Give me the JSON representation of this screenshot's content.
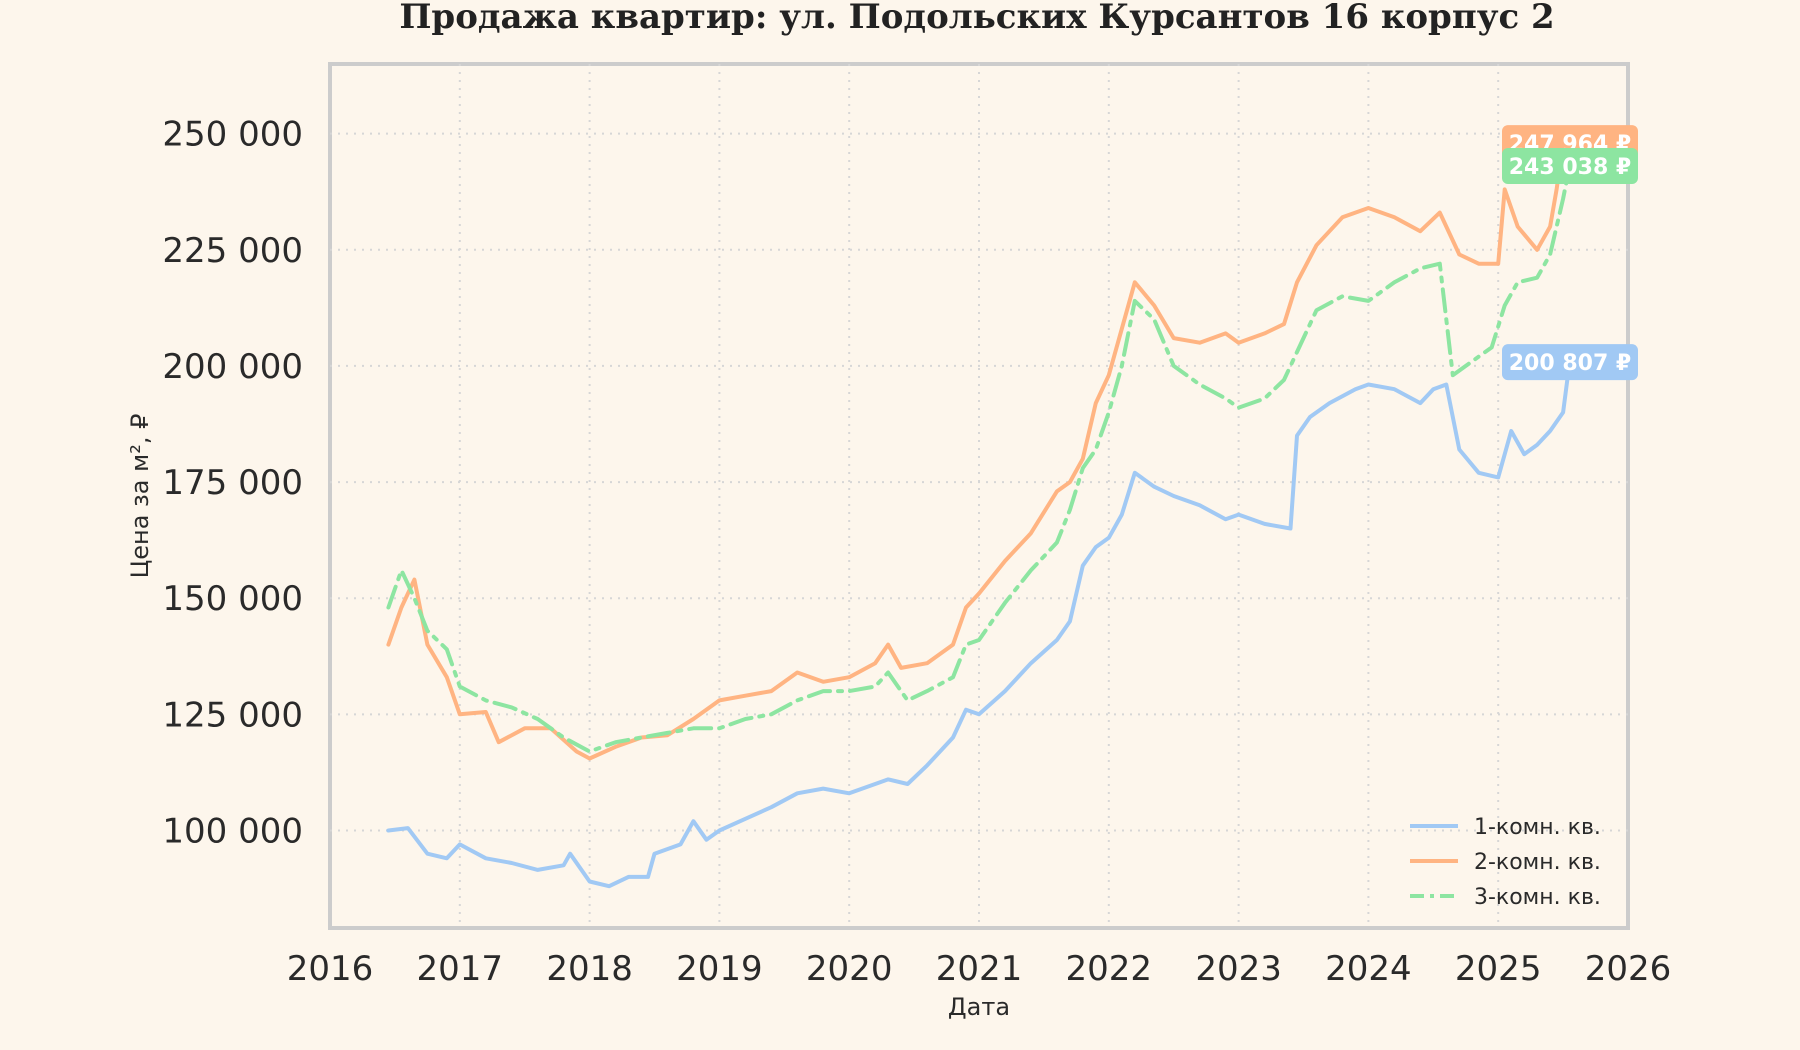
{
  "chart_data": {
    "type": "line",
    "title": "Продажа квартир: ул. Подольских Курсантов 16 корпус 2",
    "xlabel": "Дата",
    "ylabel": "Цена за м², ₽",
    "xlim": [
      2016,
      2026
    ],
    "ylim": [
      79000,
      265000
    ],
    "x_ticks": [
      "2016",
      "2017",
      "2018",
      "2019",
      "2020",
      "2021",
      "2022",
      "2023",
      "2024",
      "2025",
      "2026"
    ],
    "y_ticks": [
      {
        "value": 100000,
        "label": "100 000"
      },
      {
        "value": 125000,
        "label": "125 000"
      },
      {
        "value": 150000,
        "label": "150 000"
      },
      {
        "value": 175000,
        "label": "175 000"
      },
      {
        "value": 200000,
        "label": "200 000"
      },
      {
        "value": 225000,
        "label": "225 000"
      },
      {
        "value": 250000,
        "label": "250 000"
      }
    ],
    "grid": true,
    "legend_position": "bottom-right",
    "series": [
      {
        "name": "1-комн. кв.",
        "color": "#a1c9f4",
        "dash": "solid",
        "last_label": "200 807 ₽",
        "x": [
          2016.45,
          2016.6,
          2016.75,
          2016.9,
          2017.0,
          2017.2,
          2017.4,
          2017.6,
          2017.8,
          2017.85,
          2018.0,
          2018.15,
          2018.3,
          2018.45,
          2018.5,
          2018.7,
          2018.8,
          2018.9,
          2019.0,
          2019.2,
          2019.4,
          2019.6,
          2019.8,
          2020.0,
          2020.2,
          2020.3,
          2020.45,
          2020.6,
          2020.8,
          2020.9,
          2021.0,
          2021.2,
          2021.4,
          2021.6,
          2021.7,
          2021.8,
          2021.9,
          2022.0,
          2022.1,
          2022.2,
          2022.35,
          2022.5,
          2022.7,
          2022.9,
          2023.0,
          2023.2,
          2023.4,
          2023.45,
          2023.55,
          2023.7,
          2023.9,
          2024.0,
          2024.2,
          2024.4,
          2024.5,
          2024.6,
          2024.7,
          2024.85,
          2025.0,
          2025.1,
          2025.2,
          2025.3,
          2025.4,
          2025.5,
          2025.55
        ],
        "y": [
          100000,
          100500,
          95000,
          94000,
          97000,
          94000,
          93000,
          91500,
          92500,
          95000,
          89000,
          88000,
          90000,
          90000,
          95000,
          97000,
          102000,
          98000,
          100000,
          102500,
          105000,
          108000,
          109000,
          108000,
          110000,
          111000,
          110000,
          114000,
          120000,
          126000,
          125000,
          130000,
          136000,
          141000,
          145000,
          157000,
          161000,
          163000,
          168000,
          177000,
          174000,
          172000,
          170000,
          167000,
          168000,
          166000,
          165000,
          185000,
          189000,
          192000,
          195000,
          196000,
          195000,
          192000,
          195000,
          196000,
          182000,
          177000,
          176000,
          186000,
          181000,
          183000,
          186000,
          190000,
          200807
        ]
      },
      {
        "name": "2-комн. кв.",
        "color": "#ffb482",
        "dash": "solid",
        "last_label": "247 964 ₽",
        "x": [
          2016.45,
          2016.55,
          2016.65,
          2016.75,
          2016.9,
          2017.0,
          2017.2,
          2017.3,
          2017.5,
          2017.7,
          2017.9,
          2018.0,
          2018.2,
          2018.4,
          2018.6,
          2018.8,
          2019.0,
          2019.2,
          2019.4,
          2019.6,
          2019.8,
          2020.0,
          2020.2,
          2020.3,
          2020.4,
          2020.6,
          2020.8,
          2020.9,
          2021.0,
          2021.2,
          2021.4,
          2021.6,
          2021.7,
          2021.8,
          2021.9,
          2022.0,
          2022.1,
          2022.2,
          2022.35,
          2022.5,
          2022.7,
          2022.9,
          2023.0,
          2023.2,
          2023.35,
          2023.45,
          2023.6,
          2023.8,
          2024.0,
          2024.2,
          2024.4,
          2024.55,
          2024.7,
          2024.85,
          2025.0,
          2025.05,
          2025.15,
          2025.3,
          2025.4,
          2025.45,
          2025.5,
          2025.55
        ],
        "y": [
          140000,
          148000,
          154000,
          140000,
          133000,
          125000,
          125500,
          119000,
          122000,
          122000,
          117000,
          115500,
          118000,
          120000,
          120500,
          124000,
          128000,
          129000,
          130000,
          134000,
          132000,
          133000,
          136000,
          140000,
          135000,
          136000,
          140000,
          148000,
          151000,
          158000,
          164000,
          173000,
          175000,
          180000,
          192000,
          198000,
          208000,
          218000,
          213000,
          206000,
          205000,
          207000,
          205000,
          207000,
          209000,
          218000,
          226000,
          232000,
          234000,
          232000,
          229000,
          233000,
          224000,
          222000,
          222000,
          238000,
          230000,
          225000,
          230000,
          238000,
          247964,
          247964
        ]
      },
      {
        "name": "3-комн. кв.",
        "color": "#8de5a1",
        "dash": "dashdot",
        "last_label": "243 038 ₽",
        "x": [
          2016.45,
          2016.55,
          2016.65,
          2016.75,
          2016.9,
          2017.0,
          2017.2,
          2017.4,
          2017.6,
          2017.8,
          2018.0,
          2018.2,
          2018.4,
          2018.6,
          2018.8,
          2019.0,
          2019.2,
          2019.4,
          2019.6,
          2019.8,
          2020.0,
          2020.2,
          2020.3,
          2020.45,
          2020.6,
          2020.8,
          2020.9,
          2021.0,
          2021.2,
          2021.4,
          2021.6,
          2021.7,
          2021.8,
          2021.9,
          2022.0,
          2022.1,
          2022.2,
          2022.35,
          2022.5,
          2022.7,
          2022.9,
          2023.0,
          2023.2,
          2023.35,
          2023.45,
          2023.6,
          2023.8,
          2024.0,
          2024.2,
          2024.4,
          2024.55,
          2024.65,
          2024.8,
          2024.95,
          2025.05,
          2025.15,
          2025.3,
          2025.4,
          2025.45,
          2025.5,
          2025.55
        ],
        "y": [
          148000,
          156000,
          150000,
          143000,
          139000,
          131000,
          128000,
          126500,
          124000,
          120000,
          117000,
          119000,
          120000,
          121000,
          122000,
          122000,
          124000,
          125000,
          128000,
          130000,
          130000,
          131000,
          134000,
          128000,
          130000,
          133000,
          140000,
          141000,
          149000,
          156000,
          162000,
          169000,
          178000,
          182000,
          190000,
          200000,
          214000,
          210000,
          200000,
          196000,
          193000,
          191000,
          193000,
          197000,
          203000,
          212000,
          215000,
          214000,
          218000,
          221000,
          222000,
          198000,
          201000,
          204000,
          213000,
          218000,
          219000,
          224000,
          230000,
          236000,
          243038
        ]
      }
    ]
  }
}
